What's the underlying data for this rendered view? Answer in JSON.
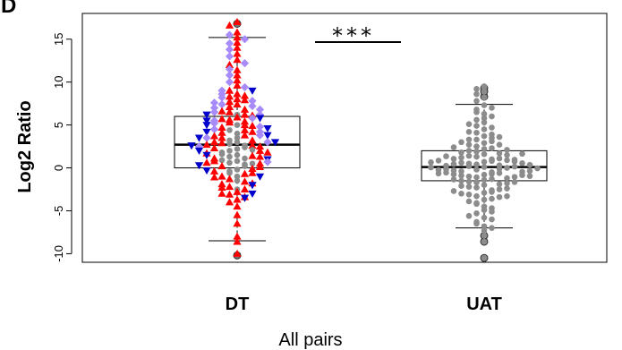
{
  "panel_label": "D",
  "chart_data": {
    "type": "scatter",
    "subtype": "beeswarm-boxplot",
    "title": "",
    "xlabel": "All pairs",
    "ylabel": "Log2 Ratio",
    "categories": [
      "DT",
      "UAT"
    ],
    "ylim": [
      -11,
      18
    ],
    "yticks": [
      -10,
      -5,
      0,
      5,
      10,
      15
    ],
    "grid": false,
    "legend": "none",
    "significance": "***",
    "boxes": [
      {
        "category": "DT",
        "whisker_low": -8.5,
        "q1": 0.0,
        "median": 2.7,
        "q3": 6.0,
        "whisker_high": 15.2,
        "outliers": [
          16.8,
          -10.2
        ]
      },
      {
        "category": "UAT",
        "whisker_low": -7.0,
        "q1": -1.5,
        "median": 0.1,
        "q3": 2.0,
        "whisker_high": 7.4,
        "outliers": [
          8.3,
          8.9,
          9.3,
          -7.9,
          -8.6,
          -10.5
        ]
      }
    ],
    "series": [
      {
        "marker": "circle-gray",
        "color": "#8c8c8c",
        "category": "DT",
        "values": [
          0.8,
          0.6,
          0.4,
          1.5,
          1.3,
          2.2,
          2.0,
          -0.2,
          -0.4,
          3.0,
          2.8,
          2.6,
          1.1,
          0.2,
          -1.0,
          3.5,
          4.0,
          2.4,
          1.8,
          0.9,
          -0.6,
          5.0,
          6.2,
          -2.5,
          1.6,
          2.1,
          0.5,
          -1.5,
          3.2,
          4.4
        ]
      },
      {
        "marker": "triangle-up-red",
        "color": "#ff0000",
        "category": "DT",
        "values": [
          17.0,
          16.6,
          15.8,
          15.2,
          14.6,
          14.0,
          13.3,
          12.6,
          12.0,
          11.4,
          10.8,
          10.2,
          9.6,
          9.0,
          8.6,
          8.3,
          8.0,
          7.7,
          7.4,
          7.1,
          6.8,
          6.5,
          6.2,
          5.9,
          5.6,
          5.3,
          5.0,
          4.7,
          4.4,
          4.1,
          3.8,
          3.5,
          3.2,
          2.9,
          2.6,
          2.3,
          2.0,
          1.7,
          1.4,
          1.1,
          0.8,
          0.5,
          0.2,
          -0.1,
          -0.4,
          -0.7,
          -1.0,
          -1.3,
          -1.6,
          -1.9,
          -2.2,
          -2.5,
          -2.8,
          -3.1,
          -3.4,
          -3.7,
          -4.0,
          -4.5,
          -5.5,
          -6.5,
          -8.0,
          -8.6,
          -10.0,
          6.6,
          5.4,
          4.2,
          3.0,
          1.8,
          0.6,
          -0.6,
          -1.8,
          -3.0,
          7.9,
          6.1,
          4.9,
          3.7,
          2.5,
          1.3,
          0.1,
          -1.1,
          -2.3,
          8.4,
          5.7,
          2.7
        ]
      },
      {
        "marker": "diamond-violet",
        "color": "#a78bfa",
        "category": "DT",
        "values": [
          15.5,
          15.0,
          14.5,
          13.8,
          13.0,
          12.2,
          11.5,
          10.8,
          10.0,
          9.4,
          9.0,
          8.6,
          8.2,
          7.8,
          7.6,
          7.4,
          7.2,
          7.0,
          6.8,
          6.5,
          6.2,
          5.8,
          5.5,
          5.2,
          4.8,
          4.5,
          4.2,
          3.8,
          3.5,
          3.0,
          2.5,
          0.7
        ]
      },
      {
        "marker": "triangle-down-blue",
        "color": "#0000cc",
        "category": "DT",
        "values": [
          9.0,
          6.2,
          5.8,
          5.5,
          5.0,
          4.6,
          4.2,
          3.8,
          3.5,
          3.0,
          2.6,
          2.0,
          1.5,
          1.0,
          0.3,
          -0.3,
          -1.0,
          -2.0,
          -3.0,
          -3.5
        ]
      },
      {
        "marker": "circle-gray",
        "color": "#8c8c8c",
        "category": "UAT",
        "values": [
          9.5,
          9.2,
          8.9,
          8.6,
          8.2,
          7.8,
          7.3,
          6.8,
          6.3,
          5.8,
          5.3,
          4.9,
          4.5,
          4.1,
          3.7,
          3.3,
          2.9,
          2.5,
          2.2,
          1.9,
          1.6,
          1.3,
          1.0,
          0.7,
          0.4,
          0.1,
          -0.2,
          -0.5,
          -0.8,
          -1.1,
          -1.4,
          -1.7,
          -2.0,
          -2.3,
          -2.6,
          -2.9,
          -3.3,
          -3.7,
          -4.1,
          -4.5,
          -4.9,
          -5.3,
          -5.8,
          -6.3,
          -6.8,
          -7.3,
          -7.9,
          -8.6,
          -10.5,
          3.5,
          3.1,
          2.7,
          2.3,
          2.0,
          1.7,
          1.4,
          1.1,
          0.8,
          0.5,
          0.2,
          -0.1,
          -0.4,
          -0.7,
          -1.0,
          -1.3,
          -1.6,
          -1.9,
          -2.2,
          -2.5,
          -2.8,
          -3.1,
          -3.4,
          0.3,
          0.0,
          -0.3,
          0.6,
          0.9,
          -0.6,
          -0.9,
          1.2,
          -1.2,
          1.5,
          -1.5,
          1.8,
          -1.8,
          0.15,
          -0.15,
          0.45,
          -0.45,
          0.75,
          -0.75,
          1.05,
          -1.05,
          0.25,
          -0.25,
          0.55,
          -0.55,
          0.85,
          -0.85,
          0.35,
          -0.35,
          0.05,
          -0.05,
          0.65,
          -0.65,
          0.95,
          -0.95,
          1.35,
          -1.35,
          1.65,
          -1.65,
          2.1,
          -2.1,
          2.4,
          -2.4,
          2.7,
          -2.7,
          3.0,
          -3.0,
          3.3,
          -3.3,
          3.6,
          -3.6,
          3.9,
          -3.9,
          4.2,
          -4.2,
          4.7,
          -4.7,
          5.1,
          -5.1,
          5.6,
          -5.6,
          6.0,
          -6.0,
          6.5,
          -6.5,
          7.0,
          -7.0
        ]
      }
    ]
  }
}
